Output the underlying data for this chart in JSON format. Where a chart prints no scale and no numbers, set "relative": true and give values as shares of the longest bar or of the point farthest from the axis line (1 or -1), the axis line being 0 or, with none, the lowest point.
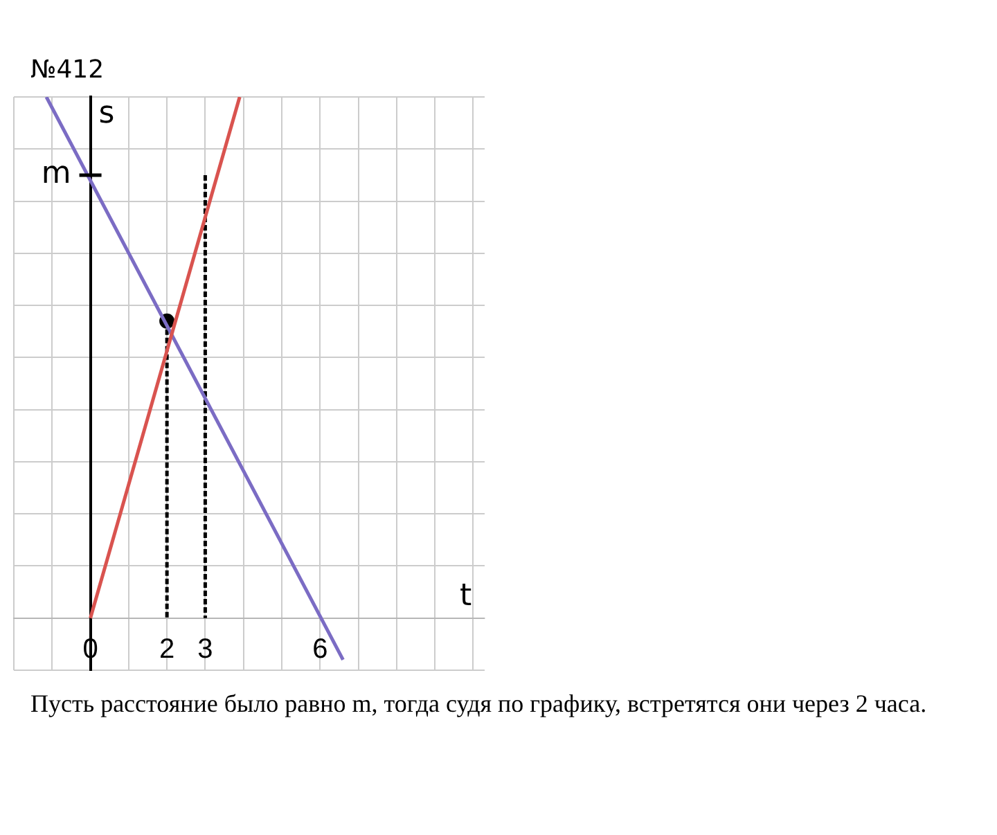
{
  "chart_data": {
    "type": "line",
    "title": "№412",
    "xlabel": "t",
    "ylabel": "s",
    "relative": true,
    "xlim": [
      -2,
      10.3
    ],
    "xticks": [
      {
        "value": -2,
        "label": null
      },
      {
        "value": -1,
        "label": null
      },
      0,
      {
        "value": 1,
        "label": null
      },
      2,
      3,
      {
        "value": 4,
        "label": null
      },
      {
        "value": 5,
        "label": null
      },
      6,
      {
        "value": 7,
        "label": null
      },
      {
        "value": 8,
        "label": null
      },
      {
        "value": 9,
        "label": null
      },
      {
        "value": 10,
        "label": null
      }
    ],
    "grid": true,
    "legend": false,
    "series": [
      {
        "color": "#d9534f",
        "x": [
          0,
          3.9
        ],
        "values": [
          0,
          1
        ]
      },
      {
        "color": "#7b6cc4",
        "x": [
          -1.15,
          6.6
        ],
        "values": [
          1,
          -0.08
        ]
      },
      {
        "color": "#000000",
        "line_style": "dashed",
        "x": [
          2,
          2
        ],
        "values": [
          0.57,
          0
        ]
      },
      {
        "color": "#000000",
        "line_style": "dashed",
        "x": [
          3,
          3
        ],
        "values": [
          0.85,
          0
        ]
      },
      {
        "type": "scatter",
        "color": "#000000",
        "marker": "circle",
        "x": [
          2
        ],
        "values": [
          0.57
        ]
      }
    ],
    "annotations": [
      {
        "text": "m",
        "x": 0,
        "y": 0.85
      },
      "Пусть расстояние было равно m, тогда судя по графику, встретятся они через 2 часа."
    ]
  }
}
